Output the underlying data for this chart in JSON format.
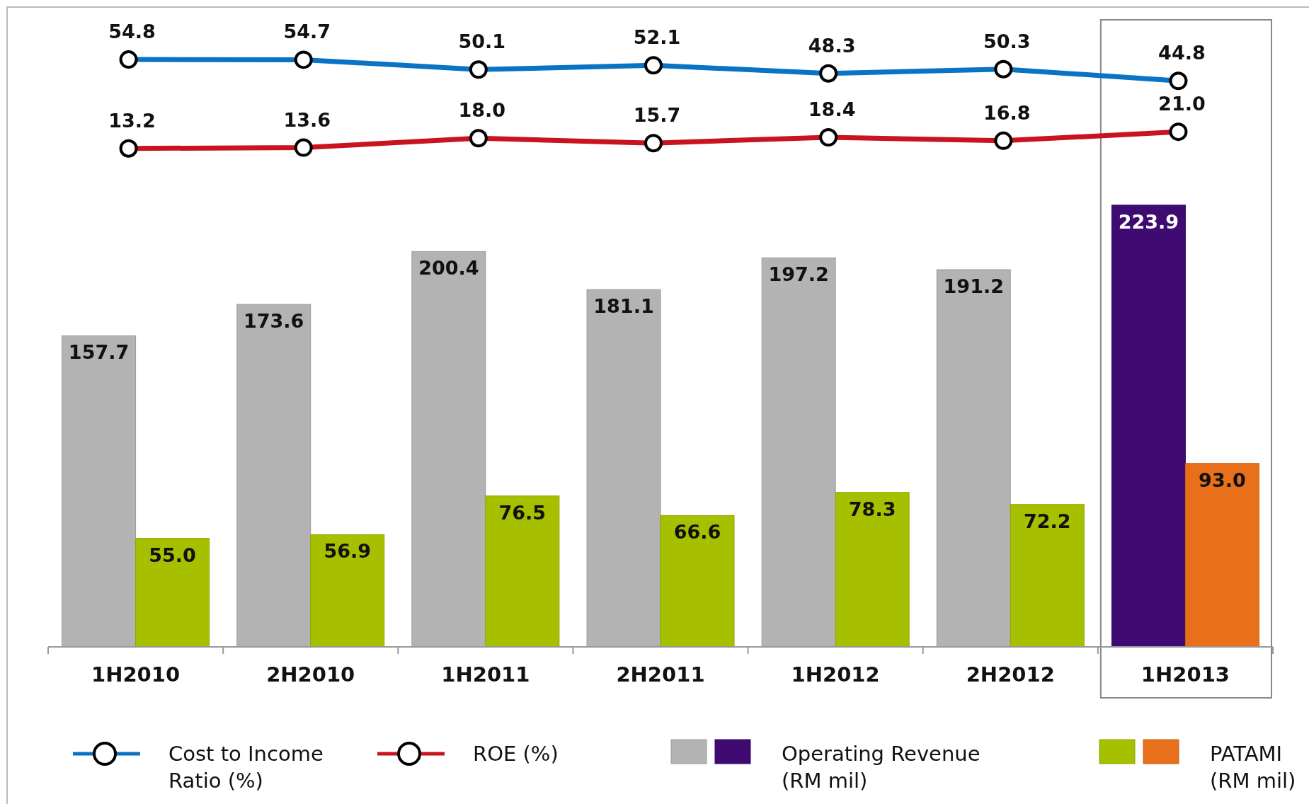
{
  "chart_data": {
    "type": "bar",
    "categories": [
      "1H2010",
      "2H2010",
      "1H2011",
      "2H2011",
      "1H2012",
      "2H2012",
      "1H2013"
    ],
    "series": [
      {
        "name": "Cost to Income Ratio (%)",
        "type": "line",
        "axis": "y2",
        "color": "#0a73c4",
        "values": [
          54.8,
          54.7,
          50.1,
          52.1,
          48.3,
          50.3,
          44.8
        ],
        "value_labels": [
          "54.8",
          "54.7",
          "50.1",
          "52.1",
          "48.3",
          "50.3",
          "44.8"
        ]
      },
      {
        "name": "ROE (%)",
        "type": "line",
        "axis": "y2",
        "color": "#c8141e",
        "values": [
          13.2,
          13.6,
          18.0,
          15.7,
          18.4,
          16.8,
          21.0
        ],
        "value_labels": [
          "13.2",
          "13.6",
          "18.0",
          "15.7",
          "18.4",
          "16.8",
          "21.0"
        ]
      },
      {
        "name": "Operating Revenue (RM mil)",
        "color": "#b3b3b3",
        "colors": [
          "#b3b3b3",
          "#b3b3b3",
          "#b3b3b3",
          "#b3b3b3",
          "#b3b3b3",
          "#b3b3b3",
          "#3f0a72"
        ],
        "values": [
          157.7,
          173.6,
          200.4,
          181.1,
          197.2,
          191.2,
          223.9
        ],
        "value_labels": [
          "157.7",
          "173.6",
          "200.4",
          "181.1",
          "197.2",
          "191.2",
          "223.9"
        ]
      },
      {
        "name": "PATAMI (RM mil)",
        "color": "#a6c000",
        "colors": [
          "#a6c000",
          "#a6c000",
          "#a6c000",
          "#a6c000",
          "#a6c000",
          "#a6c000",
          "#e8701a"
        ],
        "values": [
          55.0,
          56.9,
          76.5,
          66.6,
          78.3,
          72.2,
          93.0
        ],
        "value_labels": [
          "55.0",
          "56.9",
          "76.5",
          "66.6",
          "78.3",
          "72.2",
          "93.0"
        ]
      }
    ],
    "ylim": [
      0,
      325
    ],
    "y2lim": [
      -220,
      80
    ],
    "marker": "circle",
    "legend": "bottom"
  }
}
